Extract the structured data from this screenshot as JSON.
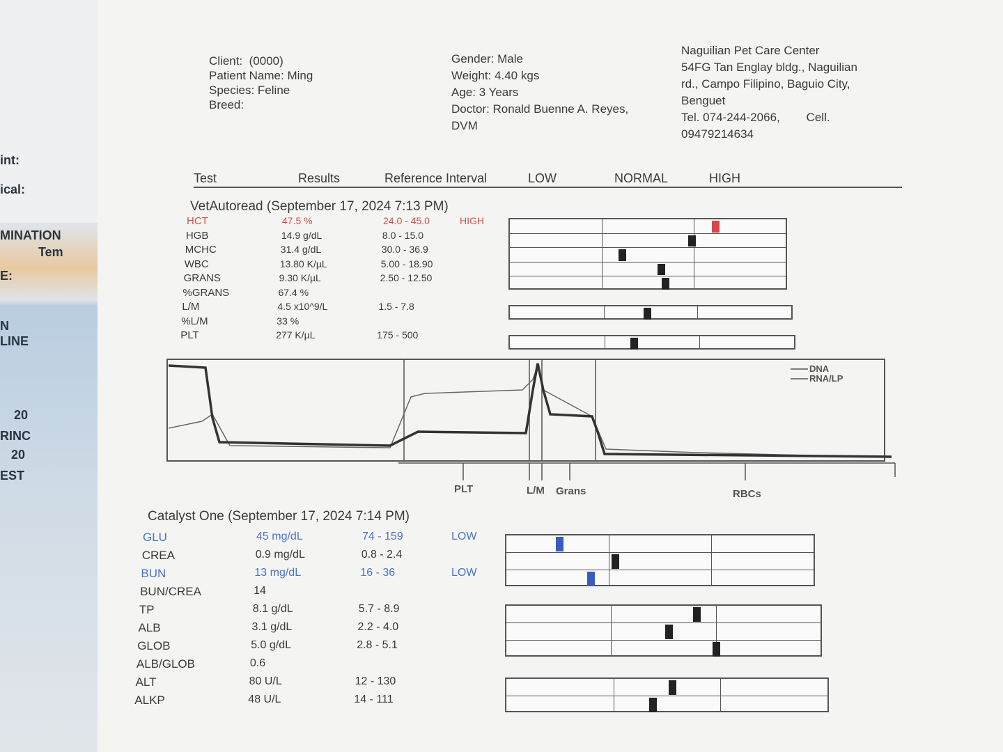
{
  "background": {
    "fragments": [
      "int:",
      "ical:",
      "MINATION",
      "Tem",
      "E:",
      "N",
      "LINE",
      "20",
      "RINC",
      "20",
      "EST"
    ]
  },
  "header": {
    "patient": [
      "Client:  (0000)",
      "Patient Name: Ming",
      "Species: Feline",
      "Breed:"
    ],
    "details": [
      "Gender: Male",
      "Weight: 4.40 kgs",
      "Age: 3 Years",
      "Doctor: Ronald Buenne A. Reyes,",
      "DVM"
    ],
    "clinic": [
      "Naguilian Pet Care Center",
      "54FG Tan Englay bldg., Naguilian",
      "rd., Campo Filipino, Baguio City,",
      "Benguet",
      "Tel. 074-244-2066,        Cell.",
      "09479214634"
    ]
  },
  "columns": [
    "Test",
    "Results",
    "Reference Interval",
    "LOW",
    "NORMAL",
    "HIGH"
  ],
  "sections": [
    {
      "title": "VetAutoread (September 17, 2024 7:13 PM)",
      "rows": [
        {
          "test": "HCT",
          "result": "47.5 %",
          "reference": "24.0 - 45.0",
          "flag": "HIGH"
        },
        {
          "test": "HGB",
          "result": "14.9 g/dL",
          "reference": "8.0 - 15.0"
        },
        {
          "test": "MCHC",
          "result": "31.4 g/dL",
          "reference": "30.0 - 36.9"
        },
        {
          "test": "WBC",
          "result": "13.80 K/µL",
          "reference": "5.00 - 18.90"
        },
        {
          "test": "GRANS",
          "result": "9.30 K/µL",
          "reference": "2.50 - 12.50"
        },
        {
          "test": "%GRANS",
          "result": "67.4 %"
        },
        {
          "test": "L/M",
          "result": "4.5 x10^9/L",
          "reference": "1.5 - 7.8"
        },
        {
          "test": "%L/M",
          "result": "33 %"
        },
        {
          "test": "PLT",
          "result": "277 K/µL",
          "reference": "175 - 500"
        }
      ]
    },
    {
      "title": "Catalyst One (September 17, 2024 7:14 PM)",
      "rows": [
        {
          "test": "GLU",
          "result": "45 mg/dL",
          "reference": "74 - 159",
          "flag": "LOW"
        },
        {
          "test": "CREA",
          "result": "0.9 mg/dL",
          "reference": "0.8 - 2.4"
        },
        {
          "test": "BUN",
          "result": "13 mg/dL",
          "reference": "16 - 36",
          "flag": "LOW"
        },
        {
          "test": "BUN/CREA",
          "result": "14"
        },
        {
          "test": "TP",
          "result": "8.1 g/dL",
          "reference": "5.7 - 8.9"
        },
        {
          "test": "ALB",
          "result": "3.1 g/dL",
          "reference": "2.2 - 4.0"
        },
        {
          "test": "GLOB",
          "result": "5.0 g/dL",
          "reference": "2.8 - 5.1"
        },
        {
          "test": "ALB/GLOB",
          "result": "0.6"
        },
        {
          "test": "ALT",
          "result": "80 U/L",
          "reference": "12 - 130"
        },
        {
          "test": "ALKP",
          "result": "48 U/L",
          "reference": "14 - 111"
        }
      ]
    }
  ],
  "graph": {
    "legend": [
      "DNA",
      "RNA/LP"
    ],
    "labels": [
      "PLT",
      "L/M",
      "Grans",
      "RBCs"
    ]
  }
}
